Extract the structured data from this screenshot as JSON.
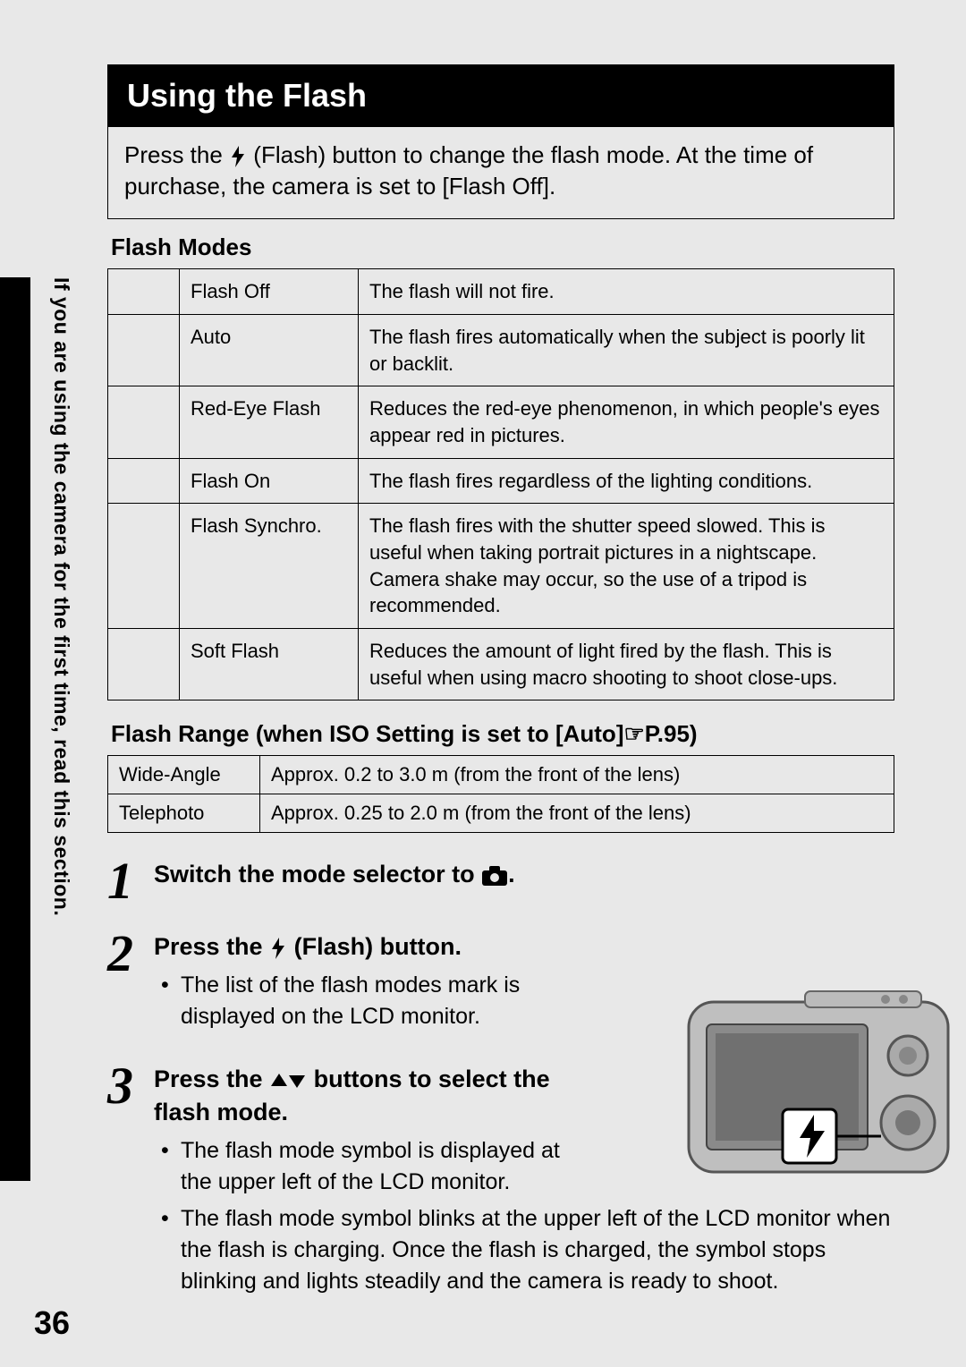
{
  "title": "Using the Flash",
  "intro": "Press the ⚡ (Flash) button to change the flash mode. At the time of purchase, the camera is set to [Flash Off].",
  "sidebar_label": "If you are using the camera for the first time, read this section.",
  "page_number": "36",
  "flash_modes_heading": "Flash Modes",
  "flash_modes": [
    {
      "name": "Flash Off",
      "desc": "The flash will not fire."
    },
    {
      "name": "Auto",
      "desc": "The flash fires automatically when the subject is poorly lit or backlit."
    },
    {
      "name": "Red-Eye Flash",
      "desc": "Reduces the red-eye phenomenon, in which people's eyes appear red in pictures."
    },
    {
      "name": "Flash On",
      "desc": "The flash fires regardless of the lighting conditions."
    },
    {
      "name": "Flash Synchro.",
      "desc": "The flash fires with the shutter speed slowed. This is useful when taking portrait pictures in a nightscape. Camera shake may occur, so the use of a tripod is recommended."
    },
    {
      "name": "Soft Flash",
      "desc": "Reduces the amount of light fired by the flash. This is useful when using macro shooting to shoot close-ups."
    }
  ],
  "flash_range_heading": "Flash Range (when ISO Setting is set to [Auto]☞P.95)",
  "flash_range": [
    {
      "name": "Wide-Angle",
      "val": "Approx. 0.2 to 3.0 m (from the front of the lens)"
    },
    {
      "name": "Telephoto",
      "val": "Approx. 0.25 to 2.0 m (from the front of the lens)"
    }
  ],
  "steps": [
    {
      "num": "1",
      "title_pre": "Switch the mode selector to ",
      "title_post": ".",
      "bullets": []
    },
    {
      "num": "2",
      "title_pre": "Press the ",
      "title_mid": " (Flash) button.",
      "bullets": [
        "The list of the flash modes mark is displayed on the LCD monitor."
      ]
    },
    {
      "num": "3",
      "title_pre": "Press the ",
      "title_mid": " buttons to select the flash mode.",
      "bullets": [
        "The flash mode symbol is displayed at the upper left of the LCD monitor.",
        "The flash mode symbol blinks at the upper left of the LCD monitor when the flash is charging. Once the flash is charged, the symbol stops blinking and lights steadily and the camera is ready to shoot."
      ]
    }
  ],
  "colors": {
    "page_bg": "#e8e8e8",
    "titlebar_bg": "#000000",
    "titlebar_fg": "#ffffff",
    "border": "#000000"
  }
}
